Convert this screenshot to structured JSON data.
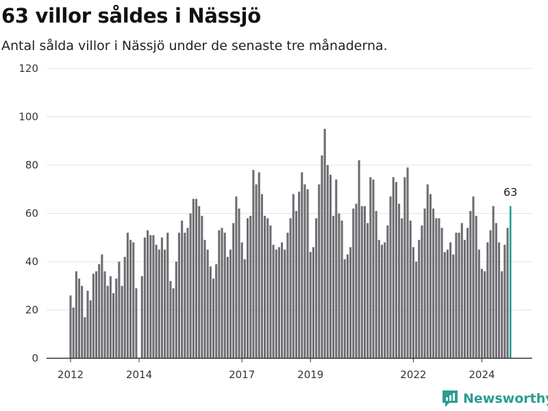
{
  "chart_data": {
    "type": "bar",
    "title": "63 villor såldes i Nässjö",
    "subtitle": "Antal sålda villor i Nässjö under de senaste tre månaderna.",
    "xlabel": "",
    "ylabel": "",
    "ylim": [
      0,
      120
    ],
    "yticks": [
      0,
      20,
      40,
      60,
      80,
      100,
      120
    ],
    "xtick_labels": [
      "2012",
      "2014",
      "2017",
      "2019",
      "2022",
      "2024"
    ],
    "grid": true,
    "x_start": "2012-01",
    "x_end": "2024-10",
    "values": [
      26,
      21,
      36,
      33,
      30,
      17,
      28,
      24,
      35,
      36,
      39,
      43,
      36,
      30,
      34,
      27,
      33,
      40,
      30,
      42,
      52,
      49,
      48,
      29,
      0,
      34,
      50,
      53,
      51,
      51,
      47,
      45,
      50,
      45,
      52,
      32,
      29,
      40,
      52,
      57,
      52,
      54,
      60,
      66,
      66,
      63,
      59,
      49,
      45,
      38,
      33,
      39,
      53,
      54,
      52,
      42,
      45,
      56,
      67,
      62,
      48,
      41,
      58,
      59,
      78,
      72,
      77,
      68,
      59,
      58,
      55,
      47,
      45,
      46,
      48,
      45,
      52,
      58,
      68,
      61,
      69,
      77,
      72,
      70,
      44,
      46,
      58,
      72,
      84,
      95,
      80,
      76,
      59,
      74,
      60,
      57,
      41,
      43,
      46,
      62,
      64,
      82,
      63,
      63,
      56,
      75,
      74,
      61,
      49,
      47,
      48,
      55,
      67,
      75,
      73,
      64,
      58,
      75,
      79,
      57,
      46,
      40,
      49,
      55,
      62,
      72,
      68,
      62,
      58,
      58,
      54,
      44,
      45,
      48,
      43,
      52,
      52,
      56,
      49,
      54,
      61,
      67,
      59,
      45,
      37,
      36,
      48,
      53,
      63,
      56,
      48,
      36,
      47,
      54,
      63
    ],
    "highlight": {
      "value": 63,
      "label": "63",
      "color": "#1a9e91"
    },
    "bar_color": "#6e6d72"
  },
  "brand": {
    "name": "Newsworthy",
    "color": "#2a9d8f"
  }
}
